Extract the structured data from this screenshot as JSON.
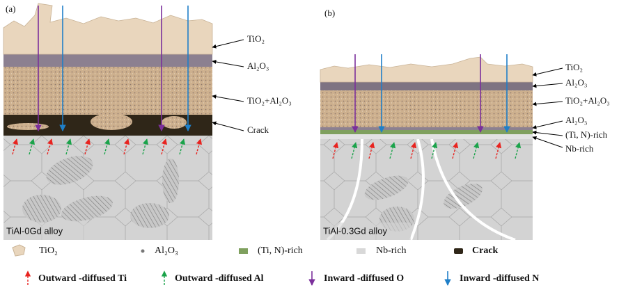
{
  "panels": [
    {
      "label": "(a)",
      "alloy": "TiAl-0Gd alloy",
      "layers": [
        "TiO₂",
        "Al₂O₃",
        "TiO₂+Al₂O₃",
        "Crack"
      ]
    },
    {
      "label": "(b)",
      "alloy": "TiAl-0.3Gd alloy",
      "layers": [
        "TiO₂",
        "Al₂O₃",
        "TiO₂+Al₂O₃",
        "Al₂O₃",
        "(Ti, N)-rich",
        "Nb-rich"
      ]
    }
  ],
  "legend": {
    "materials": [
      "TiO₂",
      "Al₂O₃",
      "(Ti, N)-rich",
      "Nb-rich",
      "Crack"
    ],
    "diffusion": [
      "Outward -diffused Ti",
      "Outward -diffused Al",
      "Inward -diffused O",
      "Inward -diffused N"
    ]
  }
}
